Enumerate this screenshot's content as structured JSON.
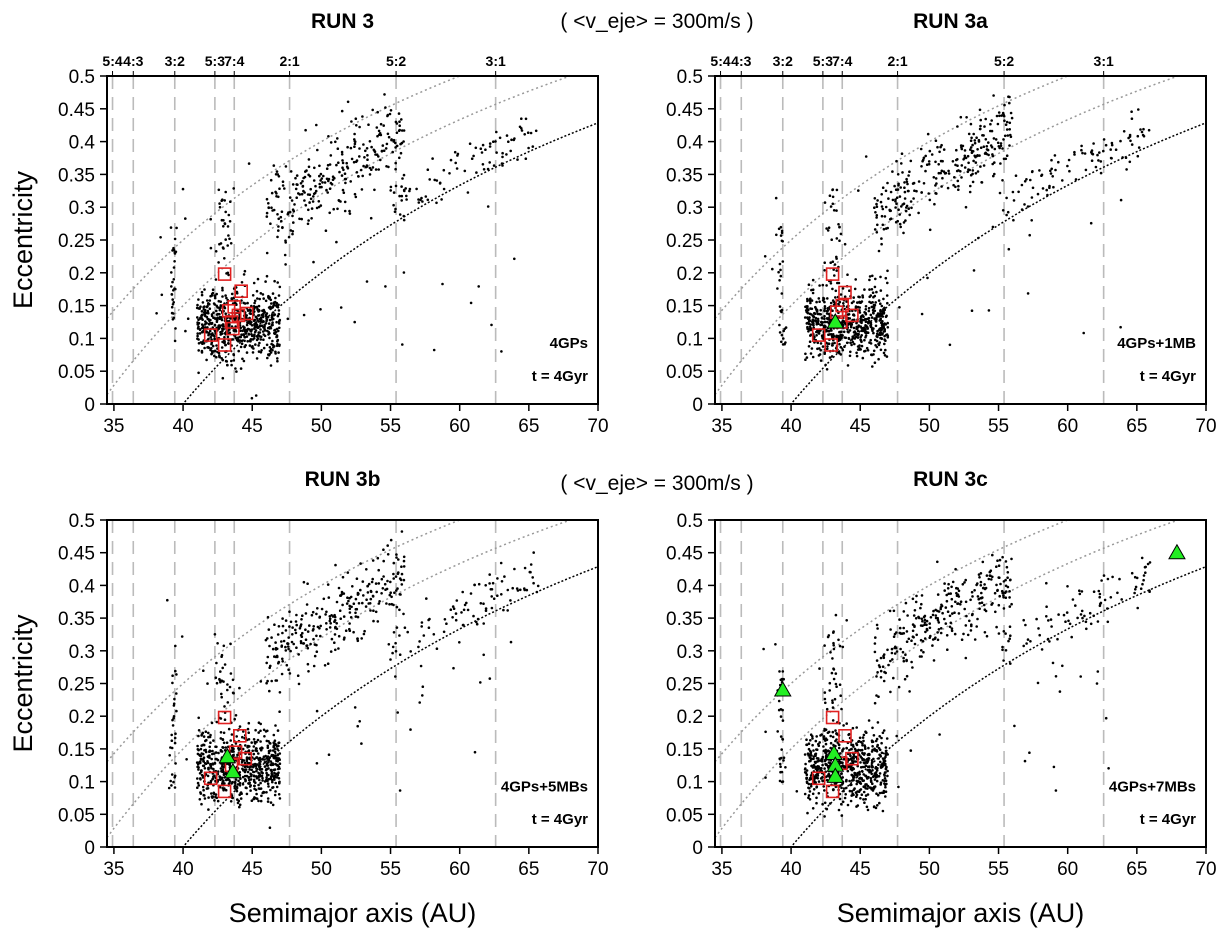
{
  "header": {
    "velocity_top": "( <v_eje> = 300m/s )",
    "velocity_bottom": "( <v_eje> = 300m/s )"
  },
  "axes": {
    "xlabel": "Semimajor axis (AU)",
    "ylabel": "Eccentricity",
    "xlim": [
      34.5,
      70
    ],
    "ylim": [
      0,
      0.5
    ],
    "xticks": [
      35,
      40,
      45,
      50,
      55,
      60,
      65,
      70
    ],
    "xtick_labels": [
      "35",
      "40",
      "45",
      "50",
      "55",
      "60",
      "65",
      "70"
    ],
    "yticks": [
      0,
      0.05,
      0.1,
      0.15,
      0.2,
      0.25,
      0.3,
      0.35,
      0.4,
      0.45,
      0.5
    ],
    "ytick_labels": [
      "0",
      "0.05",
      "0.1",
      "0.15",
      "0.2",
      "0.25",
      "0.3",
      "0.35",
      "0.4",
      "0.45",
      "0.5"
    ]
  },
  "resonances": [
    {
      "label": "5:4",
      "a": 34.9
    },
    {
      "label": "4:3",
      "a": 36.4
    },
    {
      "label": "3:2",
      "a": 39.4
    },
    {
      "label": "5:3",
      "a": 42.3
    },
    {
      "label": "7:4",
      "a": 43.7
    },
    {
      "label": "2:1",
      "a": 47.7
    },
    {
      "label": "5:2",
      "a": 55.4
    },
    {
      "label": "3:1",
      "a": 62.6
    }
  ],
  "colors": {
    "points": "#000000",
    "red_squares": "#e02020",
    "green_triangles": "#22ee22",
    "resonance_lines": "#bbbbbb",
    "perihelion_curves_gray": "#999999",
    "perihelion_curve_black": "#000000"
  },
  "chart_data": [
    {
      "type": "scatter",
      "title": "RUN 3",
      "annotation": "4GPs",
      "time": "t = 4Gyr",
      "ylabel_shown": true,
      "xlabel_shown": false,
      "resonance_labels_shown": true,
      "red_squares": [
        [
          43.0,
          0.198
        ],
        [
          44.2,
          0.172
        ],
        [
          43.3,
          0.142
        ],
        [
          43.7,
          0.148
        ],
        [
          44.0,
          0.135
        ],
        [
          44.6,
          0.138
        ],
        [
          43.5,
          0.125
        ],
        [
          43.6,
          0.115
        ],
        [
          42.0,
          0.105
        ],
        [
          43.0,
          0.09
        ]
      ],
      "green_triangles": []
    },
    {
      "type": "scatter",
      "title": "RUN 3a",
      "annotation": "4GPs+1MB",
      "time": "t = 4Gyr",
      "ylabel_shown": false,
      "xlabel_shown": false,
      "resonance_labels_shown": true,
      "red_squares": [
        [
          43.0,
          0.198
        ],
        [
          43.9,
          0.17
        ],
        [
          43.7,
          0.15
        ],
        [
          43.3,
          0.14
        ],
        [
          44.4,
          0.135
        ],
        [
          43.6,
          0.125
        ],
        [
          42.0,
          0.105
        ],
        [
          42.9,
          0.09
        ]
      ],
      "green_triangles": [
        [
          43.2,
          0.125
        ]
      ]
    },
    {
      "type": "scatter",
      "title": "RUN 3b",
      "annotation": "4GPs+5MBs",
      "time": "t = 4Gyr",
      "ylabel_shown": true,
      "xlabel_shown": true,
      "resonance_labels_shown": false,
      "red_squares": [
        [
          43.0,
          0.198
        ],
        [
          44.1,
          0.17
        ],
        [
          43.8,
          0.145
        ],
        [
          44.5,
          0.135
        ],
        [
          43.5,
          0.125
        ],
        [
          42.0,
          0.105
        ],
        [
          43.0,
          0.085
        ]
      ],
      "green_triangles": [
        [
          43.2,
          0.138
        ],
        [
          43.6,
          0.115
        ]
      ]
    },
    {
      "type": "scatter",
      "title": "RUN 3c",
      "annotation": "4GPs+7MBs",
      "time": "t = 4Gyr",
      "ylabel_shown": false,
      "xlabel_shown": true,
      "resonance_labels_shown": false,
      "red_squares": [
        [
          43.0,
          0.198
        ],
        [
          43.9,
          0.17
        ],
        [
          44.4,
          0.135
        ],
        [
          43.6,
          0.128
        ],
        [
          42.0,
          0.105
        ],
        [
          43.0,
          0.085
        ]
      ],
      "green_triangles": [
        [
          39.4,
          0.24
        ],
        [
          67.9,
          0.45
        ],
        [
          43.1,
          0.143
        ],
        [
          43.2,
          0.125
        ],
        [
          43.2,
          0.108
        ]
      ]
    }
  ]
}
